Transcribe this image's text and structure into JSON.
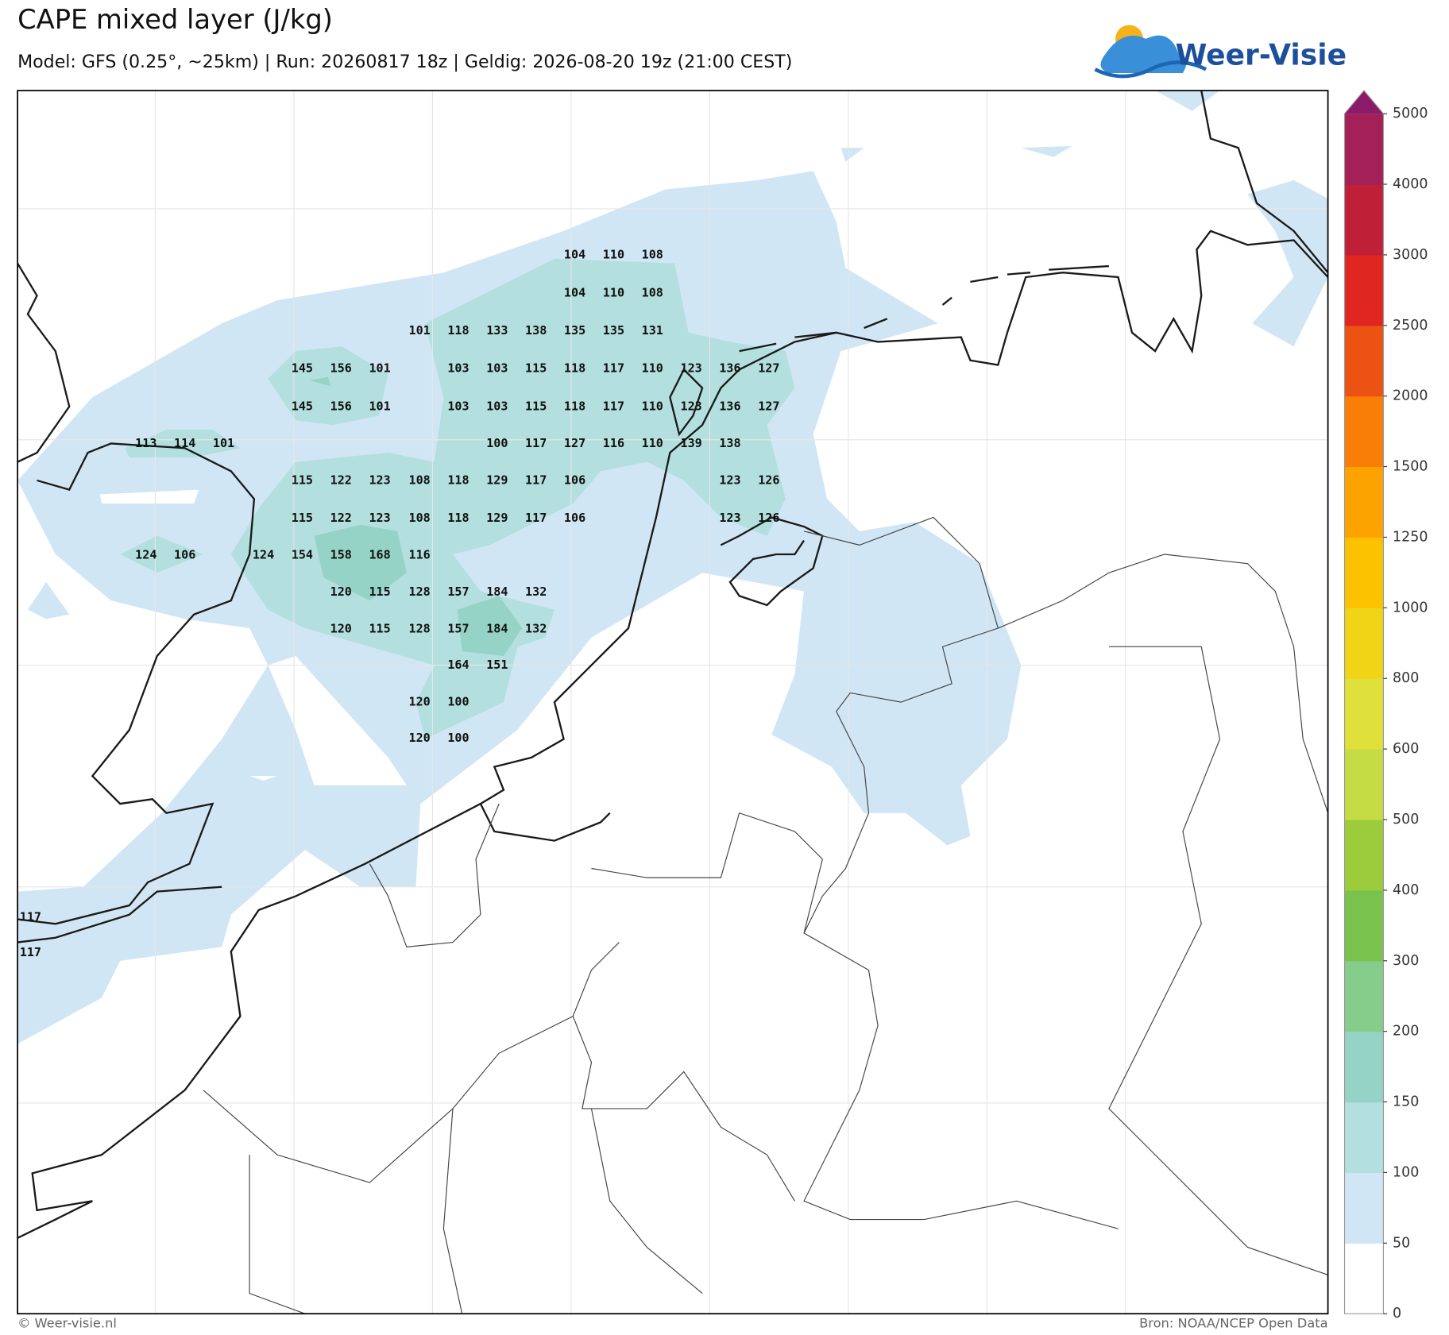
{
  "header": {
    "title": "CAPE mixed layer (J/kg)",
    "subtitle": "Model: GFS (0.25°, ~25km)  |  Run: 20260817 18z  |  Geldig: 2026-08-20 19z (21:00 CEST)",
    "logo": "Weer-Visie"
  },
  "map": {
    "labels": [
      [
        104,
        110,
        108
      ],
      [
        104,
        110,
        108
      ],
      [
        101,
        118,
        133,
        138,
        135,
        135,
        131
      ],
      [
        145,
        156,
        101,
        103,
        103,
        115,
        118,
        117,
        110,
        123,
        136,
        127
      ],
      [
        145,
        156,
        101,
        103,
        103,
        115,
        118,
        117,
        110,
        123,
        136,
        127
      ],
      [
        113,
        114,
        101,
        100,
        117,
        127,
        116,
        110,
        139,
        138
      ],
      [
        115,
        122,
        123,
        108,
        118,
        129,
        117,
        106,
        123,
        126
      ],
      [
        115,
        122,
        123,
        108,
        118,
        129,
        117,
        106,
        123,
        126
      ],
      [
        124,
        106,
        124,
        154,
        158,
        168,
        116
      ],
      [
        120,
        115,
        128,
        157,
        184,
        132
      ],
      [
        120,
        115,
        128,
        157,
        184,
        132
      ],
      [
        164,
        151
      ],
      [
        120,
        100
      ],
      [
        120,
        100
      ],
      [
        117
      ],
      [
        117
      ]
    ]
  },
  "colorbar": {
    "levels": [
      0,
      50,
      100,
      150,
      200,
      300,
      400,
      500,
      600,
      800,
      1000,
      1250,
      1500,
      2000,
      2500,
      3000,
      4000,
      5000
    ],
    "colors": [
      "#ffffff",
      "#d0e6f5",
      "#b3dfdf",
      "#95d3c6",
      "#86cc8a",
      "#7ac24e",
      "#9ccb3c",
      "#c5dc44",
      "#e0e03a",
      "#f2d417",
      "#fcc200",
      "#fca300",
      "#f87e08",
      "#ec5312",
      "#df2620",
      "#c01f38",
      "#a32059"
    ],
    "extend_color": "#8b1a6b"
  },
  "footer": {
    "left": "© Weer-visie.nl",
    "right": "Bron: NOAA/NCEP Open Data"
  }
}
